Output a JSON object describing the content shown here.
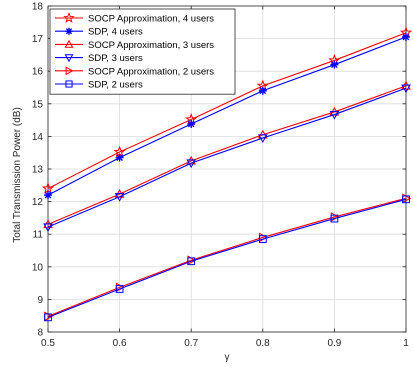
{
  "chart_data": {
    "type": "line",
    "title": "",
    "xlabel": "γ",
    "ylabel": "Total Transmission Power (dB)",
    "xlim": [
      0.5,
      1
    ],
    "ylim": [
      8,
      18
    ],
    "xticks": [
      0.5,
      0.6,
      0.7,
      0.8,
      0.9,
      1
    ],
    "xtick_labels": [
      "0.5",
      "0.6",
      "0.7",
      "0.8",
      "0.9",
      "1"
    ],
    "yticks": [
      8,
      9,
      10,
      11,
      12,
      13,
      14,
      15,
      16,
      17,
      18
    ],
    "ytick_labels": [
      "8",
      "9",
      "10",
      "11",
      "12",
      "13",
      "14",
      "15",
      "16",
      "17",
      "18"
    ],
    "grid": true,
    "legend_position": "top-left",
    "x": [
      0.5,
      0.6,
      0.7,
      0.8,
      0.9,
      1
    ],
    "series": [
      {
        "name": "SOCP Approximation, 4 users",
        "color": "#ff0000",
        "marker": "star",
        "values": [
          12.4,
          13.52,
          14.52,
          15.55,
          16.33,
          17.18
        ]
      },
      {
        "name": "SDP, 4 users",
        "color": "#0000ff",
        "marker": "asterisk",
        "values": [
          12.2,
          13.35,
          14.38,
          15.4,
          16.2,
          17.05
        ]
      },
      {
        "name": "SOCP Approximation, 3 users",
        "color": "#ff0000",
        "marker": "triangle-up",
        "values": [
          11.3,
          12.23,
          13.25,
          14.05,
          14.75,
          15.55
        ]
      },
      {
        "name": "SDP, 3 users",
        "color": "#0000ff",
        "marker": "triangle-down",
        "values": [
          11.22,
          12.15,
          13.18,
          13.95,
          14.67,
          15.48
        ]
      },
      {
        "name": "SOCP Approximation, 2 users",
        "color": "#ff0000",
        "marker": "triangle-right",
        "values": [
          8.48,
          9.37,
          10.2,
          10.9,
          11.53,
          12.1
        ]
      },
      {
        "name": "SDP, 2 users",
        "color": "#0000ff",
        "marker": "square",
        "values": [
          8.45,
          9.32,
          10.17,
          10.85,
          11.48,
          12.07
        ]
      }
    ]
  }
}
